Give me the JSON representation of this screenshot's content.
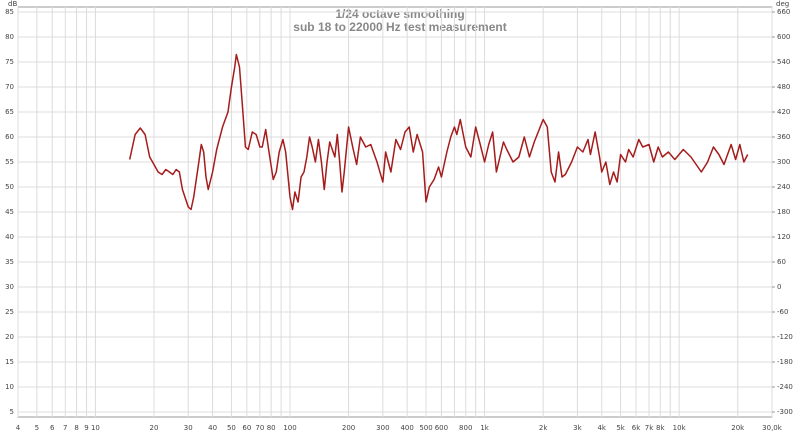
{
  "chart_data": {
    "type": "line",
    "title": "1/24 octave smoothing",
    "subtitle": "sub 18 to 22000 Hz test measurement",
    "y_label": "dB",
    "y2_label": "deg",
    "log_x": true,
    "grid": true,
    "xlim": [
      4,
      30000
    ],
    "ylim": [
      4,
      86
    ],
    "y2lim": [
      -312,
      672
    ],
    "xticks": [
      4,
      5,
      6,
      7,
      8,
      9,
      10,
      20,
      30,
      40,
      50,
      60,
      70,
      80,
      {
        "value": 90,
        "label": null
      },
      100,
      200,
      300,
      400,
      500,
      600,
      {
        "value": 700,
        "label": null
      },
      800,
      {
        "value": 900,
        "label": null
      },
      {
        "value": 1000,
        "label": "1k"
      },
      {
        "value": 2000,
        "label": "2k"
      },
      {
        "value": 3000,
        "label": "3k"
      },
      {
        "value": 4000,
        "label": "4k"
      },
      {
        "value": 5000,
        "label": "5k"
      },
      {
        "value": 6000,
        "label": "6k"
      },
      {
        "value": 7000,
        "label": "7k"
      },
      {
        "value": 8000,
        "label": "8k"
      },
      {
        "value": 9000,
        "label": null
      },
      {
        "value": 10000,
        "label": "10k"
      },
      {
        "value": 20000,
        "label": "20k"
      },
      {
        "value": 30000,
        "label": "30,0k"
      }
    ],
    "yticks": [
      5,
      10,
      15,
      20,
      25,
      30,
      35,
      40,
      45,
      50,
      55,
      60,
      65,
      70,
      75,
      80,
      85
    ],
    "y2ticks": [
      -300,
      -240,
      -180,
      -120,
      -60,
      0,
      60,
      120,
      180,
      240,
      300,
      360,
      420,
      480,
      540,
      600,
      660
    ],
    "x": [
      15,
      16,
      17,
      18,
      19,
      20,
      21,
      22,
      23,
      24,
      25,
      26,
      27,
      28,
      30,
      31,
      32,
      34,
      35,
      36,
      37,
      38,
      40,
      42,
      45,
      48,
      50,
      52,
      53,
      55,
      57,
      59,
      61,
      64,
      67,
      70,
      72,
      75,
      78,
      82,
      85,
      88,
      92,
      95,
      100,
      103,
      106,
      110,
      114,
      118,
      122,
      126,
      130,
      135,
      140,
      145,
      150,
      155,
      160,
      170,
      175,
      180,
      185,
      190,
      200,
      210,
      220,
      230,
      245,
      260,
      280,
      300,
      310,
      330,
      350,
      370,
      390,
      410,
      430,
      450,
      480,
      500,
      520,
      550,
      580,
      600,
      640,
      670,
      700,
      720,
      750,
      800,
      850,
      900,
      950,
      1000,
      1050,
      1100,
      1150,
      1250,
      1300,
      1400,
      1500,
      1600,
      1700,
      1800,
      2000,
      2100,
      2200,
      2300,
      2400,
      2500,
      2600,
      2800,
      3000,
      3200,
      3400,
      3500,
      3700,
      3900,
      4000,
      4200,
      4400,
      4600,
      4800,
      5000,
      5300,
      5500,
      5800,
      6200,
      6500,
      7000,
      7400,
      7800,
      8200,
      8800,
      9500,
      10500,
      11500,
      13000,
      14000,
      15000,
      16000,
      17000,
      18500,
      19500,
      20500,
      21500,
      22500
    ],
    "series": [
      {
        "name": "sub 18 to 22000 Hz test measurement",
        "color": "#a51c1c",
        "values": [
          55.5,
          60.5,
          61.8,
          60.5,
          56,
          54.5,
          53,
          52.5,
          53.5,
          53,
          52.5,
          53.5,
          53,
          49.5,
          46,
          45.5,
          48,
          55,
          58.5,
          57,
          52,
          49.5,
          53,
          57.5,
          62,
          65,
          70,
          74,
          76.5,
          74,
          66,
          58,
          57.5,
          61,
          60.5,
          58,
          58,
          61.5,
          57,
          51.5,
          53,
          57,
          59.5,
          57,
          48,
          45.5,
          49,
          47,
          52,
          53,
          56,
          60,
          58,
          55,
          59.5,
          55,
          49.5,
          55,
          59,
          56,
          60.5,
          55,
          49,
          53,
          62,
          58,
          54.5,
          60,
          58,
          58.5,
          55,
          51,
          57,
          53,
          59.5,
          57.5,
          61,
          62,
          57,
          60.5,
          57,
          47,
          50,
          51.5,
          54,
          52,
          57,
          60,
          62,
          60.5,
          63.5,
          58,
          56,
          62,
          58.5,
          55,
          58.5,
          61,
          53,
          59,
          57.5,
          55,
          56,
          60,
          56,
          59,
          63.5,
          62,
          53,
          51,
          57,
          52,
          52.5,
          55,
          58,
          57,
          59.5,
          56.5,
          61,
          56,
          53,
          55,
          50.5,
          53,
          51,
          56.5,
          55,
          57.5,
          56,
          59.5,
          58,
          58.5,
          55,
          58,
          56,
          57,
          55.5,
          57.5,
          56,
          53,
          55,
          58,
          56.5,
          54.5,
          58.5,
          55.5,
          58.5,
          55,
          56.5
        ]
      }
    ]
  }
}
